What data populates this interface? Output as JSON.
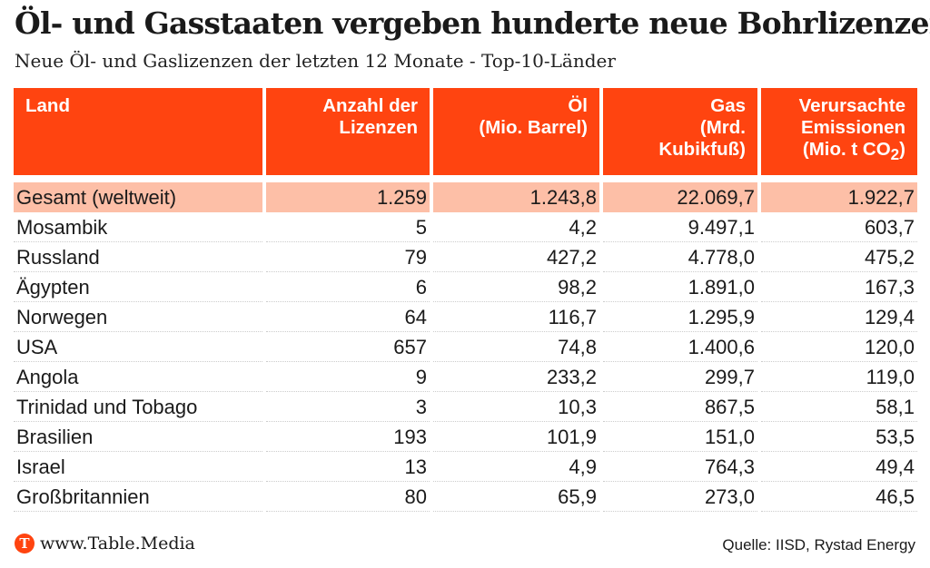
{
  "header": {
    "title": "Öl- und Gasstaaten vergeben hunderte neue Bohrlizenzen",
    "subtitle": "Neue Öl- und Gaslizenzen der letzten 12 Monate - Top-10-Länder"
  },
  "columns": {
    "land": "Land",
    "lizenzen": [
      "Anzahl der",
      "Lizenzen"
    ],
    "oel": [
      "Öl",
      "(Mio. Barrel)"
    ],
    "gas": [
      "Gas",
      "(Mrd.",
      "Kubikfuß)"
    ],
    "emissionen": [
      "Verursachte",
      "Emissionen",
      "(Mio. t CO",
      "2",
      ")"
    ]
  },
  "chart_data": {
    "type": "table",
    "title": "Öl- und Gasstaaten vergeben hunderte neue Bohrlizenzen",
    "subtitle": "Neue Öl- und Gaslizenzen der letzten 12 Monate - Top-10-Länder",
    "columns": [
      "Land",
      "Anzahl der Lizenzen",
      "Öl (Mio. Barrel)",
      "Gas (Mrd. Kubikfuß)",
      "Verursachte Emissionen (Mio. t CO2)"
    ],
    "total": [
      "Gesamt (weltweit)",
      "1.259",
      "1.243,8",
      "22.069,7",
      "1.922,7"
    ],
    "rows": [
      [
        "Mosambik",
        "5",
        "4,2",
        "9.497,1",
        "603,7"
      ],
      [
        "Russland",
        "79",
        "427,2",
        "4.778,0",
        "475,2"
      ],
      [
        "Ägypten",
        "6",
        "98,2",
        "1.891,0",
        "167,3"
      ],
      [
        "Norwegen",
        "64",
        "116,7",
        "1.295,9",
        "129,4"
      ],
      [
        "USA",
        "657",
        "74,8",
        "1.400,6",
        "120,0"
      ],
      [
        "Angola",
        "9",
        "233,2",
        "299,7",
        "119,0"
      ],
      [
        "Trinidad und Tobago",
        "3",
        "10,3",
        "867,5",
        "58,1"
      ],
      [
        "Brasilien",
        "193",
        "101,9",
        "151,0",
        "53,5"
      ],
      [
        "Israel",
        "13",
        "4,9",
        "764,3",
        "49,4"
      ],
      [
        "Großbritannien",
        "80",
        "65,9",
        "273,0",
        "46,5"
      ]
    ]
  },
  "footer": {
    "logo_letter": "T",
    "logo_text": "www.Table.Media",
    "source": "Quelle: IISD, Rystad Energy"
  },
  "colors": {
    "header_bg": "#ff4410",
    "total_bg": "#fdbfa7",
    "text": "#1a1a1a"
  }
}
